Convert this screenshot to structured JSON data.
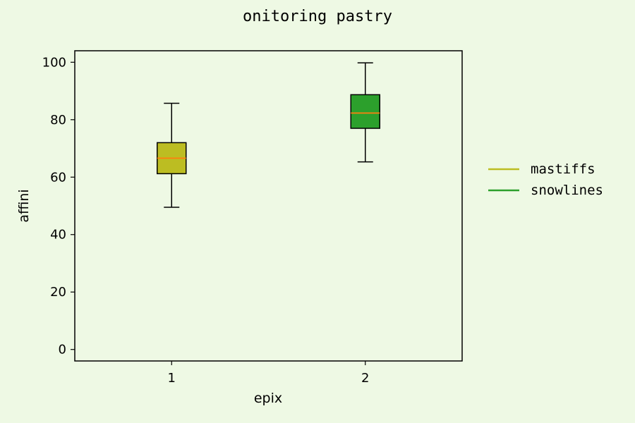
{
  "chart_data": {
    "type": "box",
    "title": "onitoring pastry",
    "xlabel": "epix",
    "ylabel": "affini",
    "categories": [
      "1",
      "2"
    ],
    "ylim": [
      -4,
      104
    ],
    "yticks": [
      0,
      20,
      40,
      60,
      80,
      100
    ],
    "grid": false,
    "legend_placement": "outside-right",
    "series": [
      {
        "name": "mastiffs",
        "color": "#bcbd22",
        "whisker_low": 49.5,
        "q1": 61.2,
        "median": 66.6,
        "q3": 72.0,
        "whisker_high": 85.7
      },
      {
        "name": "snowlines",
        "color": "#2ca02c",
        "whisker_low": 65.3,
        "q1": 77.0,
        "median": 82.3,
        "q3": 88.7,
        "whisker_high": 99.8
      }
    ],
    "median_color": "#ff7f0e",
    "background_color": "#eef9e4"
  }
}
